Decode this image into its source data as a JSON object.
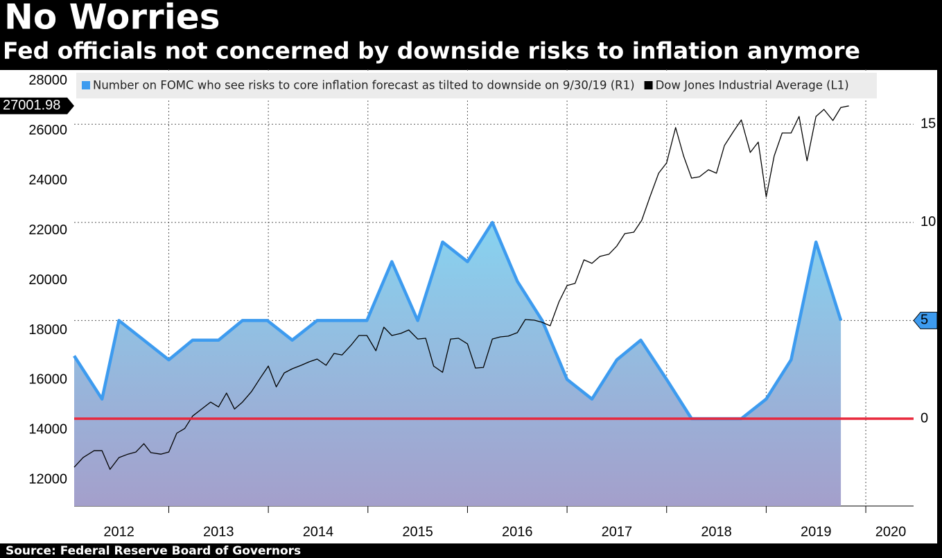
{
  "chart_data": {
    "type": "line",
    "title": "No Worries",
    "subtitle": "Fed officials not concerned by downside risks to inflation anymore",
    "source": "Source: Federal Reserve Board of Governors",
    "legend": "top",
    "xlim": [
      2012.05,
      2020.48
    ],
    "xticks": [
      {
        "value": 2012.5,
        "label": "2012"
      },
      {
        "value": 2013.5,
        "label": "2013"
      },
      {
        "value": 2014.5,
        "label": "2014"
      },
      {
        "value": 2015.5,
        "label": "2015"
      },
      {
        "value": 2016.5,
        "label": "2016"
      },
      {
        "value": 2017.5,
        "label": "2017"
      },
      {
        "value": 2018.5,
        "label": "2018"
      },
      {
        "value": 2019.5,
        "label": "2019"
      },
      {
        "value": 2020.25,
        "label": "2020"
      }
    ],
    "xgrid": [
      2013,
      2014,
      2015,
      2016,
      2017,
      2018,
      2019,
      2020
    ],
    "ylim": [
      10950,
      28470
    ],
    "yticks": [
      12000,
      14000,
      16000,
      18000,
      20000,
      22000,
      24000,
      26000,
      28000
    ],
    "y2lim": [
      -4.45,
      17.8
    ],
    "y2ticks": [
      0,
      5,
      10,
      15
    ],
    "zero_line_color": "#e8283c",
    "series": [
      {
        "name": "Number on FOMC who see risks to core inflation forecast as tilted to downside on 9/30/19 (R1)",
        "color": "#3d9bef",
        "axis": "y2",
        "type": "area",
        "x": [
          2012.05,
          2012.33,
          2012.5,
          2013,
          2013.24,
          2013.5,
          2013.74,
          2013.99,
          2014.24,
          2014.49,
          2014.74,
          2014.99,
          2015.24,
          2015.5,
          2015.75,
          2016,
          2016.25,
          2016.5,
          2016.75,
          2017,
          2017.25,
          2017.5,
          2017.74,
          2018,
          2018.25,
          2018.5,
          2018.75,
          2019,
          2019.25,
          2019.5,
          2019.75
        ],
        "values": [
          3.2,
          1,
          5,
          3,
          4,
          4,
          5,
          5,
          4,
          5,
          5,
          5,
          8,
          5,
          9,
          8,
          10,
          7,
          5,
          2,
          1,
          3,
          4,
          2,
          0,
          0,
          0,
          1,
          3,
          9,
          5
        ]
      },
      {
        "name": "Dow Jones Industrial Average  (L1)",
        "color": "#000000",
        "axis": "y",
        "type": "line",
        "x": [
          2012.05,
          2012.14,
          2012.25,
          2012.33,
          2012.41,
          2012.5,
          2012.59,
          2012.67,
          2012.75,
          2012.82,
          2012.92,
          2013,
          2013.08,
          2013.16,
          2013.24,
          2013.33,
          2013.42,
          2013.5,
          2013.58,
          2013.66,
          2013.74,
          2013.83,
          2013.92,
          2014,
          2014.08,
          2014.16,
          2014.24,
          2014.33,
          2014.41,
          2014.49,
          2014.58,
          2014.66,
          2014.74,
          2014.83,
          2014.91,
          2014.99,
          2015.08,
          2015.16,
          2015.24,
          2015.33,
          2015.41,
          2015.5,
          2015.58,
          2015.66,
          2015.75,
          2015.83,
          2015.91,
          2016,
          2016.08,
          2016.16,
          2016.25,
          2016.33,
          2016.41,
          2016.5,
          2016.58,
          2016.67,
          2016.75,
          2016.83,
          2016.92,
          2017,
          2017.08,
          2017.17,
          2017.25,
          2017.33,
          2017.42,
          2017.5,
          2017.58,
          2017.67,
          2017.75,
          2017.83,
          2017.92,
          2018,
          2018.09,
          2018.17,
          2018.25,
          2018.33,
          2018.42,
          2018.5,
          2018.58,
          2018.67,
          2018.75,
          2018.84,
          2018.92,
          2019,
          2019.08,
          2019.16,
          2019.25,
          2019.33,
          2019.41,
          2019.5,
          2019.58,
          2019.67,
          2019.75,
          2019.83
        ],
        "values": [
          12505,
          12895,
          13170,
          13170,
          12420,
          12895,
          13030,
          13115,
          13450,
          13090,
          13030,
          13115,
          13870,
          14060,
          14560,
          14840,
          15120,
          14925,
          15480,
          14840,
          15120,
          15535,
          16090,
          16565,
          15730,
          16290,
          16455,
          16595,
          16735,
          16845,
          16595,
          17070,
          17010,
          17400,
          17790,
          17790,
          17180,
          18125,
          17790,
          17875,
          18015,
          17650,
          17680,
          16565,
          16315,
          17650,
          17680,
          17455,
          16485,
          16510,
          17650,
          17735,
          17765,
          17905,
          18430,
          18405,
          18320,
          18180,
          19155,
          19795,
          19880,
          20825,
          20685,
          20965,
          21050,
          21380,
          21880,
          21935,
          22410,
          23325,
          24300,
          24715,
          26135,
          24995,
          24105,
          24160,
          24440,
          24300,
          25410,
          25970,
          26440,
          25135,
          25550,
          23355,
          24995,
          25915,
          25915,
          26580,
          24800,
          26580,
          26860,
          26415,
          26940,
          27001.98
        ]
      }
    ]
  }
}
